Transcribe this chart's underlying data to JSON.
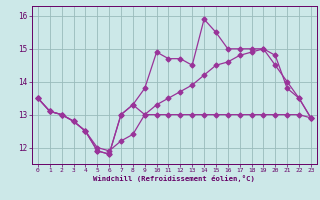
{
  "x_labels": [
    0,
    1,
    2,
    3,
    4,
    5,
    6,
    7,
    8,
    9,
    10,
    11,
    12,
    13,
    14,
    15,
    16,
    17,
    18,
    19,
    20,
    21,
    22,
    23
  ],
  "line1_y": [
    13.5,
    13.1,
    13.0,
    12.8,
    12.5,
    11.9,
    11.8,
    13.0,
    13.3,
    13.0,
    13.0,
    13.0,
    13.0,
    13.0,
    13.0,
    13.0,
    13.0,
    13.0,
    13.0,
    13.0,
    13.0,
    13.0,
    13.0,
    12.9
  ],
  "line2_y": [
    13.5,
    13.1,
    13.0,
    12.8,
    12.5,
    11.9,
    11.8,
    13.0,
    13.3,
    13.8,
    14.9,
    14.7,
    14.7,
    14.5,
    15.9,
    15.5,
    15.0,
    15.0,
    15.0,
    15.0,
    14.8,
    13.8,
    13.5,
    12.9
  ],
  "line3_y": [
    13.5,
    13.1,
    13.0,
    12.8,
    12.5,
    12.0,
    11.9,
    12.2,
    12.4,
    13.0,
    13.3,
    13.5,
    13.7,
    13.9,
    14.2,
    14.5,
    14.6,
    14.8,
    14.9,
    15.0,
    14.5,
    14.0,
    13.5,
    12.9
  ],
  "ylim": [
    11.5,
    16.3
  ],
  "xlim": [
    -0.5,
    23.5
  ],
  "yticks": [
    12,
    13,
    14,
    15,
    16
  ],
  "bg_color": "#cce8e8",
  "line_color": "#993399",
  "grid_color": "#99bbbb",
  "tick_color": "#660066",
  "xlabel": "Windchill (Refroidissement éolien,°C)",
  "marker": "D",
  "marker_size": 2.5,
  "line_width": 0.9
}
